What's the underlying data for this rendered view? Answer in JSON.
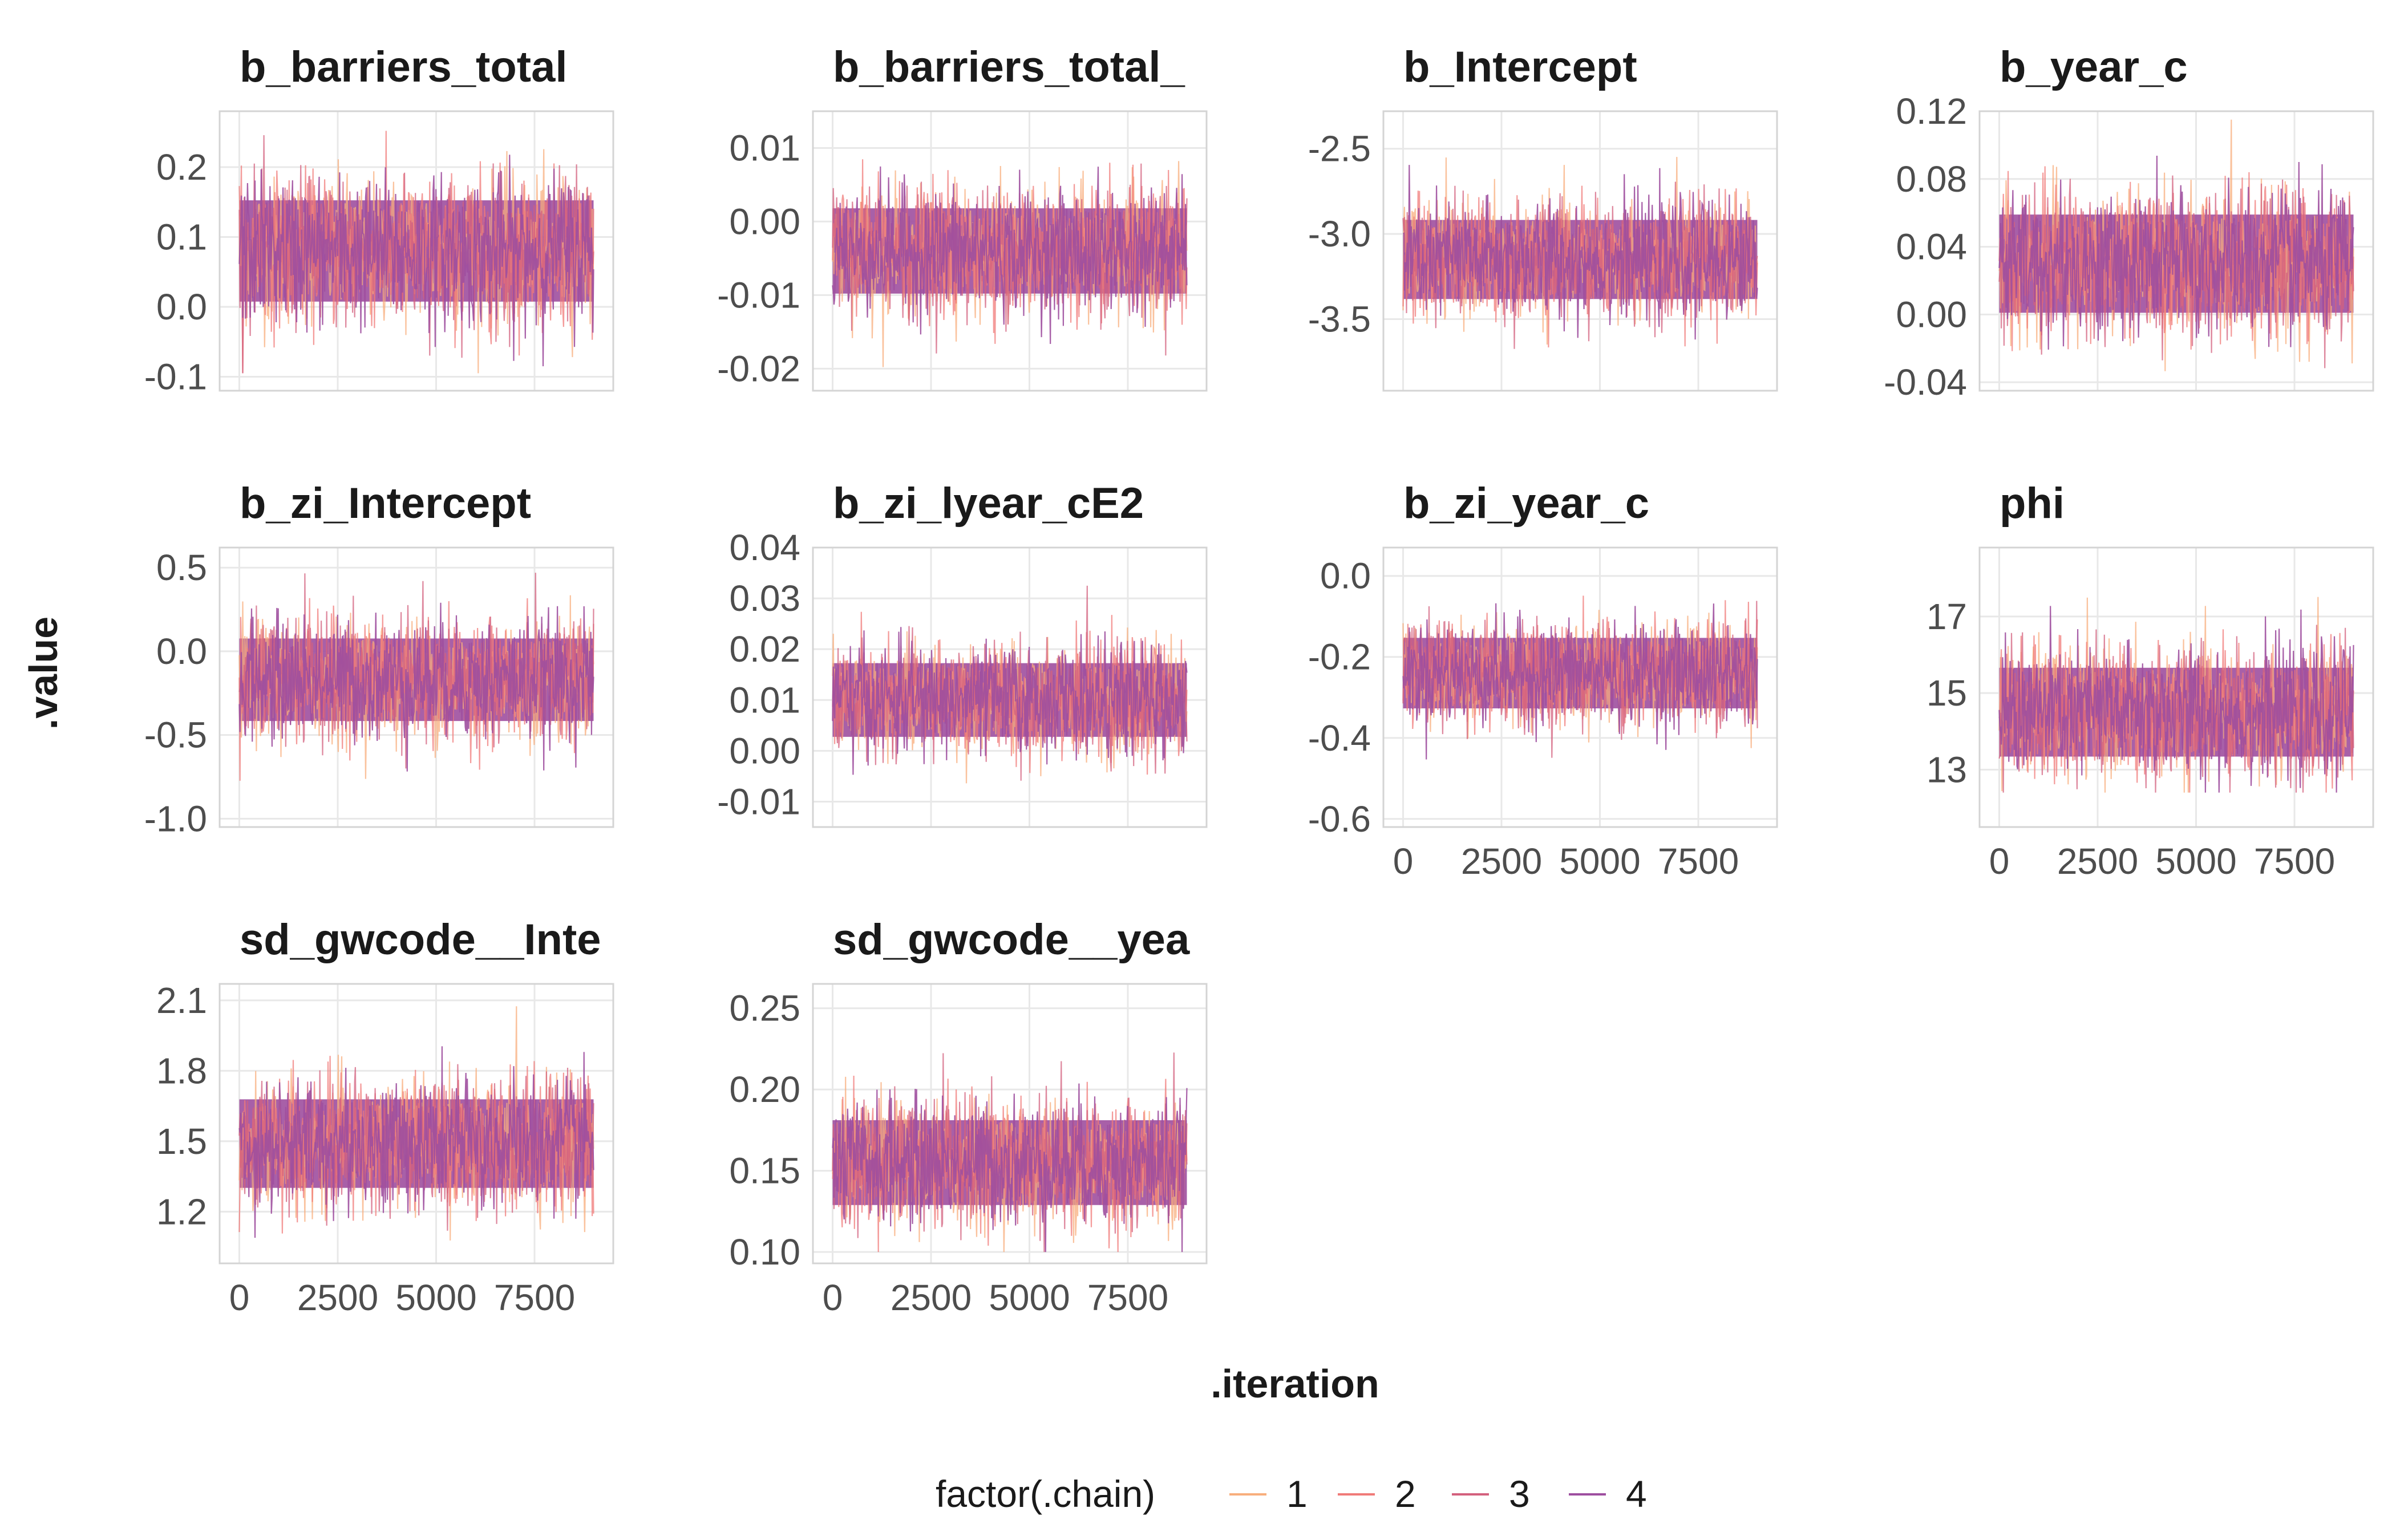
{
  "chart_data": {
    "type": "line",
    "xlabel": ".iteration",
    "ylabel": ".value",
    "x_ticks": [
      0,
      2500,
      5000,
      7500
    ],
    "x_tick_labels": [
      "0",
      "2500",
      "5000",
      "7500"
    ],
    "xlim": [
      -500,
      9500
    ],
    "n_iterations": 9000,
    "legend": {
      "title": "factor(.chain)",
      "placement": "bottom",
      "entries": [
        "1",
        "2",
        "3",
        "4"
      ]
    },
    "series_colors": {
      "1": "#F8AE7C",
      "2": "#F07A78",
      "3": "#D3607D",
      "4": "#9E4F9F"
    },
    "panel_fill_color": "#9E4F9F",
    "grid": true,
    "panels": [
      {
        "title": "b_barriers_total",
        "ylim": [
          -0.12,
          0.28
        ],
        "yticks": [
          -0.1,
          0.0,
          0.1,
          0.2
        ],
        "ytick_labels": [
          "-0.1",
          "0.0",
          "0.1",
          "0.2"
        ],
        "center": 0.08,
        "band_sd": 0.05,
        "extremes": [
          -0.095,
          0.265
        ]
      },
      {
        "title": "b_barriers_total_",
        "ylim": [
          -0.023,
          0.015
        ],
        "yticks": [
          -0.02,
          -0.01,
          0.0,
          0.01
        ],
        "ytick_labels": [
          "-0.02",
          "-0.01",
          "0.00",
          "0.01"
        ],
        "center": -0.004,
        "band_sd": 0.004,
        "extremes": [
          -0.021,
          0.013
        ]
      },
      {
        "title": "b_Intercept",
        "ylim": [
          -3.92,
          -2.28
        ],
        "yticks": [
          -3.5,
          -3.0,
          -2.5
        ],
        "ytick_labels": [
          "-3.5",
          "-3.0",
          "-2.5"
        ],
        "center": -3.15,
        "band_sd": 0.16,
        "extremes": [
          -3.85,
          -2.35
        ]
      },
      {
        "title": "b_year_c",
        "ylim": [
          -0.045,
          0.12
        ],
        "yticks": [
          -0.04,
          0.0,
          0.04,
          0.08,
          0.12
        ],
        "ytick_labels": [
          "-0.04",
          "0.00",
          "0.04",
          "0.08",
          "0.12"
        ],
        "center": 0.03,
        "band_sd": 0.02,
        "extremes": [
          -0.035,
          0.115
        ]
      },
      {
        "title": "b_zi_Intercept",
        "ylim": [
          -1.05,
          0.62
        ],
        "yticks": [
          -1.0,
          -0.5,
          0.0,
          0.5
        ],
        "ytick_labels": [
          "-1.0",
          "-0.5",
          "0.0",
          "0.5"
        ],
        "center": -0.17,
        "band_sd": 0.17,
        "extremes": [
          -0.95,
          0.58
        ]
      },
      {
        "title": "b_zi_lyear_cE2",
        "ylim": [
          -0.015,
          0.04
        ],
        "yticks": [
          -0.01,
          0.0,
          0.01,
          0.02,
          0.03,
          0.04
        ],
        "ytick_labels": [
          "-0.01",
          "0.00",
          "0.01",
          "0.02",
          "0.03",
          "0.04"
        ],
        "center": 0.01,
        "band_sd": 0.005,
        "extremes": [
          -0.012,
          0.037
        ]
      },
      {
        "title": "b_zi_year_c",
        "ylim": [
          -0.62,
          0.07
        ],
        "yticks": [
          -0.6,
          -0.4,
          -0.2,
          0.0
        ],
        "ytick_labels": [
          "-0.6",
          "-0.4",
          "-0.2",
          "0.0"
        ],
        "center": -0.24,
        "band_sd": 0.06,
        "extremes": [
          -0.57,
          0.05
        ]
      },
      {
        "title": "phi",
        "ylim": [
          11.5,
          18.8
        ],
        "yticks": [
          13,
          15,
          17
        ],
        "ytick_labels": [
          "13",
          "15",
          "17"
        ],
        "center": 14.5,
        "band_sd": 0.8,
        "extremes": [
          12.4,
          18.1
        ]
      },
      {
        "title": "sd_gwcode__Inte",
        "ylim": [
          0.98,
          2.17
        ],
        "yticks": [
          1.2,
          1.5,
          1.8,
          2.1
        ],
        "ytick_labels": [
          "1.2",
          "1.5",
          "1.8",
          "2.1"
        ],
        "center": 1.49,
        "band_sd": 0.13,
        "extremes": [
          1.07,
          2.12
        ]
      },
      {
        "title": "sd_gwcode__yea",
        "ylim": [
          0.093,
          0.265
        ],
        "yticks": [
          0.1,
          0.15,
          0.2,
          0.25
        ],
        "ytick_labels": [
          "0.10",
          "0.15",
          "0.20",
          "0.25"
        ],
        "center": 0.155,
        "band_sd": 0.018,
        "extremes": [
          0.1,
          0.255
        ]
      }
    ]
  }
}
